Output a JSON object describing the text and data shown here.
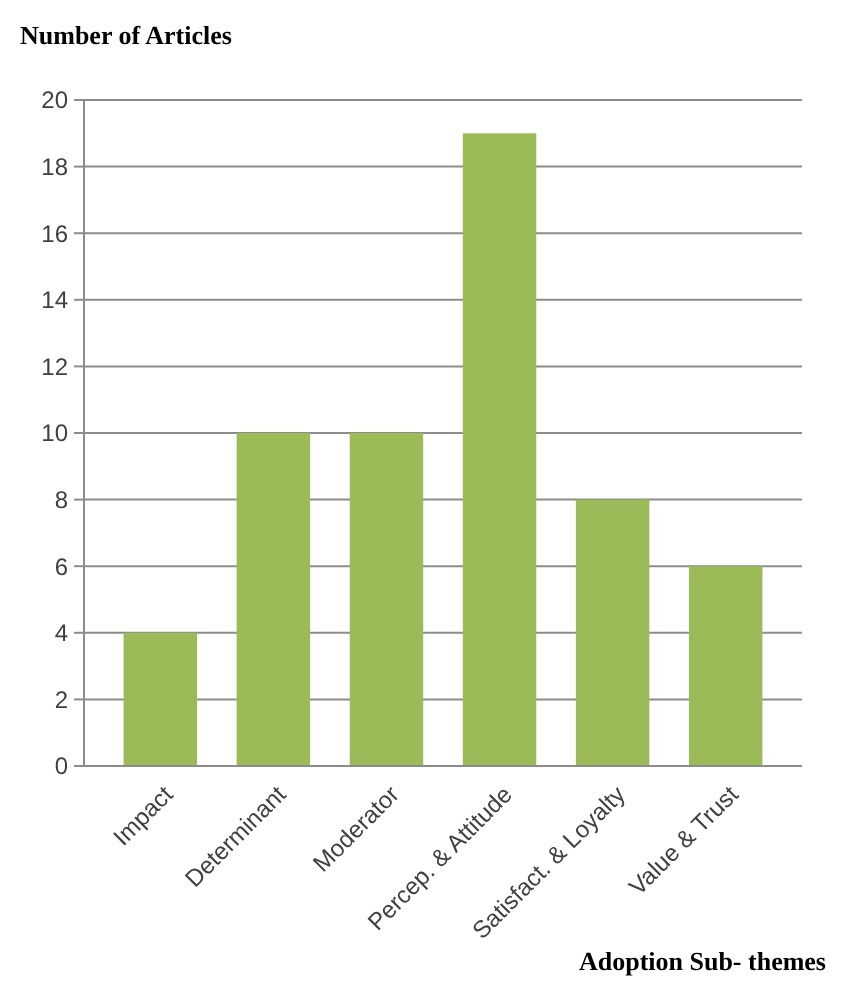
{
  "chart_data": {
    "type": "bar",
    "xlabel": "Adoption Sub- themes",
    "ylabel": "Number of Articles",
    "categories": [
      "Impact",
      "Determinant",
      "Moderator",
      "Percep. & Attitude",
      "Satisfact. & Loyalty",
      "Value & Trust"
    ],
    "values": [
      4,
      10,
      10,
      19,
      8,
      6
    ],
    "color": "#9bbb59",
    "ylim": [
      0,
      20
    ],
    "yticks": [
      0,
      2,
      4,
      6,
      8,
      10,
      12,
      14,
      16,
      18,
      20
    ],
    "grid": "y"
  }
}
